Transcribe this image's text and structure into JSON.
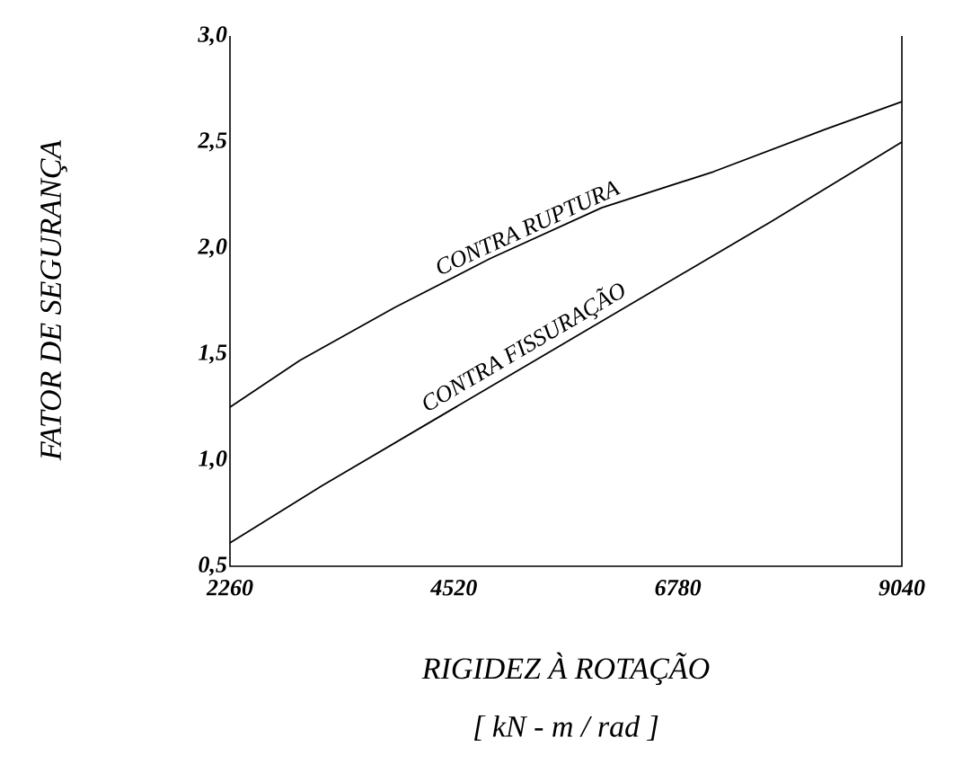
{
  "chart_data": {
    "type": "line",
    "xlabel": "RIGIDEZ À ROTAÇÃO",
    "ylabel": "FATOR DE SEGURANÇA",
    "annotations": [
      "[ kN - m / rad ]"
    ],
    "series": [
      {
        "name": "CONTRA RUPTURA",
        "color": "#000000",
        "x": [
          2260,
          2965,
          3924,
          4883,
          6011,
          7139,
          8267,
          9040
        ],
        "values": [
          1.25,
          1.47,
          1.72,
          1.95,
          2.19,
          2.36,
          2.56,
          2.69
        ]
      },
      {
        "name": "CONTRA FISSURAÇÃO",
        "color": "#000000",
        "x": [
          2260,
          3191,
          4319,
          5447,
          6575,
          7703,
          8549,
          9040
        ],
        "values": [
          0.61,
          0.88,
          1.19,
          1.5,
          1.81,
          2.12,
          2.36,
          2.5
        ]
      }
    ],
    "xlim": [
      2260,
      9040
    ],
    "ylim": [
      0.5,
      3.0
    ],
    "xticks": [
      2260,
      4520,
      6780,
      9040
    ],
    "yticks": [
      {
        "value": 0.5,
        "label": "0,5"
      },
      {
        "value": 1.0,
        "label": "1,0"
      },
      {
        "value": 1.5,
        "label": "1,5"
      },
      {
        "value": 2.0,
        "label": "2,0"
      },
      {
        "value": 2.5,
        "label": "2,5"
      },
      {
        "value": 3.0,
        "label": "3,0"
      }
    ],
    "legend": false,
    "grid": false,
    "marker": "none",
    "line_style": "solid"
  }
}
